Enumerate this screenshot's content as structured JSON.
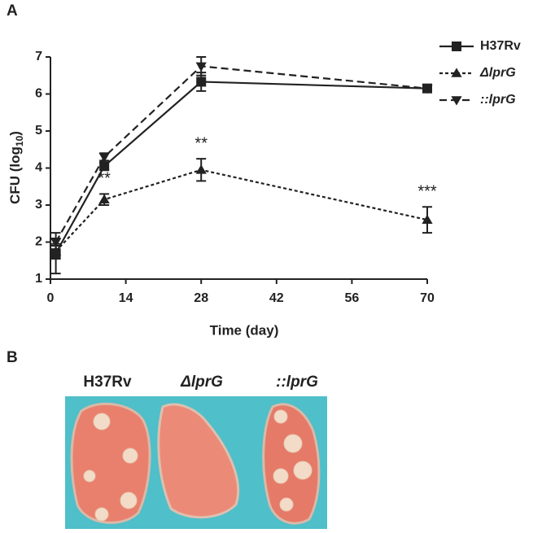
{
  "panel_labels": [
    "A",
    "B"
  ],
  "chart_data": {
    "type": "line",
    "xlabel": "Time (day)",
    "ylabel_parts": [
      "CFU (log",
      "10",
      ")"
    ],
    "x": [
      1,
      10,
      28,
      70
    ],
    "series": [
      {
        "name": "H37Rv",
        "color": "#222222",
        "marker": "square",
        "dash": "solid",
        "italic": false,
        "values": [
          1.7,
          4.05,
          6.33,
          6.15
        ],
        "errors": [
          0.55,
          0.1,
          0.25,
          0.05
        ]
      },
      {
        "name": "ΔlprG",
        "color": "#222222",
        "marker": "triangle-up",
        "dash": "dotted",
        "italic": true,
        "values": [
          1.75,
          3.15,
          3.95,
          2.6
        ],
        "errors": [
          0.2,
          0.15,
          0.3,
          0.35
        ]
      },
      {
        "name": "::lprG",
        "color": "#222222",
        "marker": "triangle-down",
        "dash": "dashed",
        "italic": true,
        "values": [
          2.0,
          4.3,
          6.75,
          6.15
        ],
        "errors": [
          0.1,
          0.1,
          0.25,
          0.05
        ]
      }
    ],
    "annotations": [
      "**",
      "**",
      "***"
    ],
    "xlim": [
      0,
      70
    ],
    "xticks": [
      0,
      14,
      28,
      42,
      56,
      70
    ],
    "ylim": [
      1,
      7
    ],
    "yticks": [
      1,
      2,
      3,
      4,
      5,
      6,
      7
    ],
    "grid": false
  },
  "photo": {
    "labels": [
      "H37Rv",
      "ΔlprG",
      "::lprG"
    ]
  }
}
